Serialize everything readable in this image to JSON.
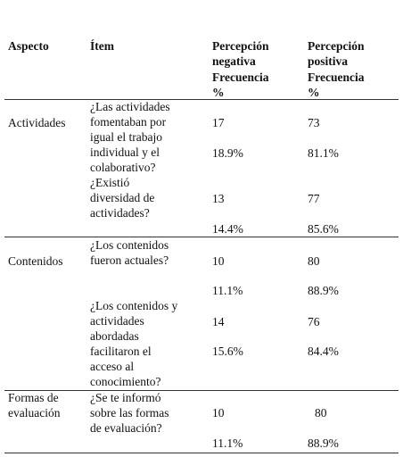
{
  "table": {
    "header": {
      "aspect": "Aspecto",
      "item": "Ítem",
      "negative": [
        "Percepción",
        "negativa",
        "Frecuencia",
        "%"
      ],
      "positive": [
        "Percepción",
        "positiva",
        "Frecuencia",
        "%"
      ]
    },
    "rows": [
      {
        "aspect": [
          "Actividades"
        ],
        "item": [
          "¿Las actividades",
          "fomentaban por",
          "igual el trabajo",
          "individual y el",
          "colaborativo?"
        ],
        "negative_frequency": 17,
        "negative_percent": "18.9%",
        "positive_frequency": 73,
        "positive_percent": "81.1%"
      },
      {
        "item": [
          "¿Existió",
          "diversidad de",
          "actividades?"
        ],
        "negative_frequency": 13,
        "negative_percent": "14.4%",
        "positive_frequency": 77,
        "positive_percent": "85.6%"
      },
      {
        "aspect": [
          "Contenidos"
        ],
        "item": [
          "¿Los contenidos",
          "fueron actuales?"
        ],
        "negative_frequency": 10,
        "negative_percent": "11.1%",
        "positive_frequency": 80,
        "positive_percent": "88.9%"
      },
      {
        "item": [
          "¿Los contenidos y",
          "actividades",
          "abordadas",
          "facilitaron el",
          "acceso al",
          "conocimiento?"
        ],
        "negative_frequency": 14,
        "negative_percent": "15.6%",
        "positive_frequency": 76,
        "positive_percent": "84.4%"
      },
      {
        "aspect": [
          "Formas de",
          "evaluación"
        ],
        "item": [
          "¿Se te informó",
          "sobre las formas",
          "de evaluación?"
        ],
        "negative_frequency": 10,
        "negative_percent": "11.1%",
        "positive_frequency": 80,
        "positive_percent": "88.9%"
      }
    ]
  }
}
